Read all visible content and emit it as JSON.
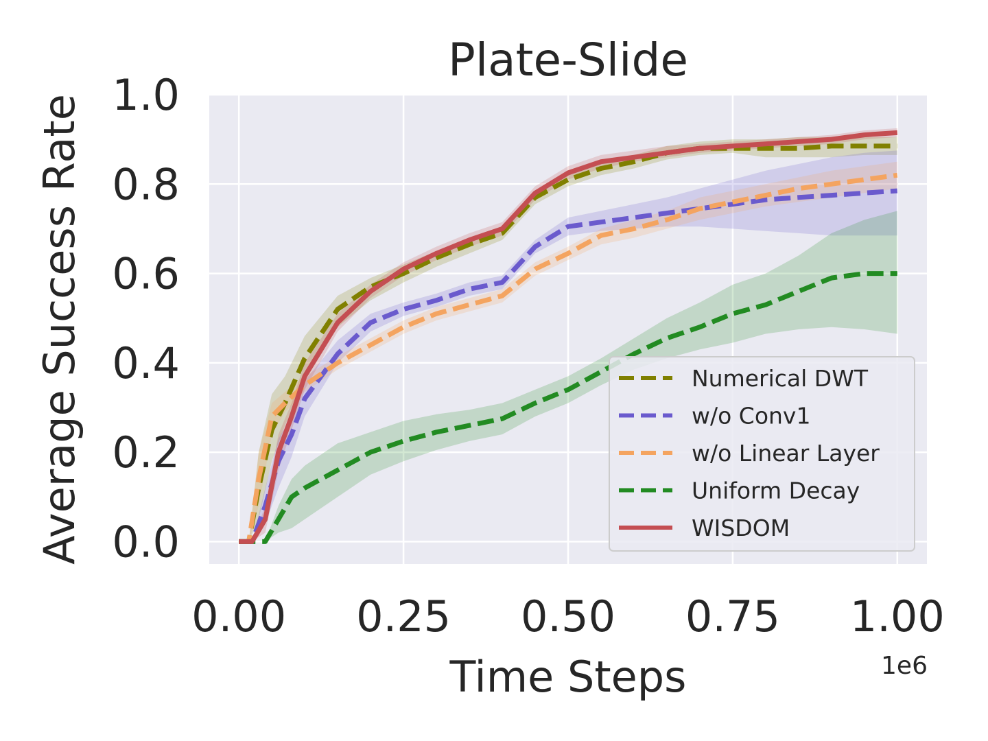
{
  "chart_data": {
    "type": "line",
    "title": "Plate-Slide",
    "xlabel": "Time Steps",
    "ylabel": "Average Success Rate",
    "x_offset_label": "1e6",
    "xlim": [
      -0.045,
      1.045
    ],
    "ylim": [
      -0.05,
      1.0
    ],
    "xticks": [
      0.0,
      0.25,
      0.5,
      0.75,
      1.0
    ],
    "xtick_labels": [
      "0.00",
      "0.25",
      "0.50",
      "0.75",
      "1.00"
    ],
    "yticks": [
      0.0,
      0.2,
      0.4,
      0.6,
      0.8,
      1.0
    ],
    "ytick_labels": [
      "0.0",
      "0.2",
      "0.4",
      "0.6",
      "0.8",
      "1.0"
    ],
    "grid": true,
    "legend_position": "lower-right",
    "series": [
      {
        "name": "Numerical DWT",
        "color": "#808000",
        "style": "dashed",
        "x": [
          0.0,
          0.015,
          0.03,
          0.05,
          0.07,
          0.1,
          0.15,
          0.2,
          0.25,
          0.3,
          0.35,
          0.4,
          0.45,
          0.5,
          0.55,
          0.6,
          0.65,
          0.7,
          0.75,
          0.8,
          0.85,
          0.9,
          0.95,
          1.0
        ],
        "y": [
          0.0,
          0.0,
          0.12,
          0.25,
          0.31,
          0.41,
          0.52,
          0.57,
          0.6,
          0.635,
          0.665,
          0.69,
          0.77,
          0.81,
          0.835,
          0.85,
          0.87,
          0.88,
          0.88,
          0.88,
          0.88,
          0.885,
          0.885,
          0.885
        ],
        "lower": [
          0.0,
          0.0,
          0.05,
          0.18,
          0.26,
          0.36,
          0.48,
          0.54,
          0.58,
          0.615,
          0.645,
          0.675,
          0.755,
          0.795,
          0.82,
          0.835,
          0.855,
          0.865,
          0.87,
          0.86,
          0.86,
          0.86,
          0.865,
          0.865
        ],
        "upper": [
          0.0,
          0.0,
          0.2,
          0.33,
          0.37,
          0.46,
          0.55,
          0.59,
          0.62,
          0.65,
          0.68,
          0.705,
          0.785,
          0.825,
          0.85,
          0.865,
          0.885,
          0.895,
          0.9,
          0.9,
          0.905,
          0.905,
          0.905,
          0.905
        ]
      },
      {
        "name": "w/o Conv1",
        "color": "#6a5acd",
        "style": "dashed",
        "x": [
          0.0,
          0.02,
          0.04,
          0.06,
          0.08,
          0.1,
          0.15,
          0.2,
          0.25,
          0.3,
          0.35,
          0.4,
          0.45,
          0.5,
          0.55,
          0.6,
          0.65,
          0.7,
          0.75,
          0.8,
          0.85,
          0.9,
          0.95,
          1.0
        ],
        "y": [
          0.0,
          0.0,
          0.08,
          0.18,
          0.24,
          0.32,
          0.42,
          0.49,
          0.52,
          0.54,
          0.565,
          0.58,
          0.66,
          0.705,
          0.715,
          0.725,
          0.735,
          0.745,
          0.755,
          0.765,
          0.77,
          0.775,
          0.78,
          0.785
        ],
        "lower": [
          0.0,
          0.0,
          0.04,
          0.12,
          0.19,
          0.28,
          0.4,
          0.47,
          0.505,
          0.525,
          0.55,
          0.565,
          0.645,
          0.685,
          0.695,
          0.7,
          0.705,
          0.705,
          0.7,
          0.695,
          0.69,
          0.685,
          0.685,
          0.685
        ],
        "upper": [
          0.0,
          0.0,
          0.12,
          0.23,
          0.28,
          0.36,
          0.45,
          0.51,
          0.535,
          0.555,
          0.58,
          0.595,
          0.675,
          0.725,
          0.74,
          0.755,
          0.77,
          0.79,
          0.81,
          0.83,
          0.845,
          0.86,
          0.87,
          0.875
        ]
      },
      {
        "name": "w/o Linear Layer",
        "color": "#f4a460",
        "style": "dashed",
        "x": [
          0.0,
          0.015,
          0.03,
          0.05,
          0.07,
          0.1,
          0.15,
          0.2,
          0.25,
          0.3,
          0.35,
          0.4,
          0.45,
          0.5,
          0.55,
          0.6,
          0.65,
          0.7,
          0.75,
          0.8,
          0.85,
          0.9,
          0.95,
          1.0
        ],
        "y": [
          0.0,
          0.0,
          0.14,
          0.28,
          0.31,
          0.35,
          0.4,
          0.44,
          0.48,
          0.51,
          0.53,
          0.55,
          0.61,
          0.645,
          0.685,
          0.7,
          0.72,
          0.745,
          0.76,
          0.775,
          0.79,
          0.8,
          0.81,
          0.82
        ],
        "lower": [
          0.0,
          0.0,
          0.08,
          0.24,
          0.29,
          0.335,
          0.385,
          0.425,
          0.465,
          0.495,
          0.515,
          0.535,
          0.595,
          0.63,
          0.665,
          0.68,
          0.7,
          0.72,
          0.735,
          0.75,
          0.76,
          0.77,
          0.78,
          0.79
        ],
        "upper": [
          0.0,
          0.0,
          0.2,
          0.31,
          0.335,
          0.37,
          0.415,
          0.455,
          0.495,
          0.525,
          0.545,
          0.565,
          0.625,
          0.66,
          0.7,
          0.72,
          0.74,
          0.77,
          0.785,
          0.8,
          0.815,
          0.83,
          0.84,
          0.85
        ]
      },
      {
        "name": "Uniform Decay",
        "color": "#228b22",
        "style": "dashed",
        "x": [
          0.0,
          0.04,
          0.06,
          0.08,
          0.1,
          0.15,
          0.2,
          0.25,
          0.3,
          0.35,
          0.4,
          0.45,
          0.5,
          0.55,
          0.6,
          0.65,
          0.7,
          0.75,
          0.8,
          0.85,
          0.9,
          0.95,
          1.0
        ],
        "y": [
          0.0,
          0.0,
          0.05,
          0.1,
          0.12,
          0.16,
          0.2,
          0.225,
          0.245,
          0.26,
          0.275,
          0.31,
          0.34,
          0.38,
          0.42,
          0.455,
          0.48,
          0.51,
          0.53,
          0.56,
          0.59,
          0.6,
          0.6
        ],
        "lower": [
          0.0,
          0.0,
          0.02,
          0.03,
          0.05,
          0.1,
          0.15,
          0.18,
          0.205,
          0.225,
          0.24,
          0.28,
          0.31,
          0.35,
          0.385,
          0.41,
          0.43,
          0.445,
          0.465,
          0.475,
          0.48,
          0.475,
          0.465
        ],
        "upper": [
          0.0,
          0.0,
          0.08,
          0.14,
          0.17,
          0.22,
          0.245,
          0.27,
          0.285,
          0.295,
          0.31,
          0.34,
          0.37,
          0.41,
          0.455,
          0.5,
          0.535,
          0.575,
          0.6,
          0.64,
          0.69,
          0.72,
          0.74
        ]
      },
      {
        "name": "WISDOM",
        "color": "#c44e52",
        "style": "solid",
        "x": [
          0.0,
          0.02,
          0.04,
          0.06,
          0.08,
          0.1,
          0.15,
          0.2,
          0.25,
          0.3,
          0.35,
          0.4,
          0.45,
          0.5,
          0.55,
          0.6,
          0.65,
          0.7,
          0.75,
          0.8,
          0.85,
          0.9,
          0.95,
          1.0
        ],
        "y": [
          0.0,
          0.0,
          0.05,
          0.2,
          0.28,
          0.37,
          0.49,
          0.56,
          0.61,
          0.645,
          0.675,
          0.7,
          0.78,
          0.825,
          0.85,
          0.86,
          0.87,
          0.88,
          0.885,
          0.89,
          0.895,
          0.9,
          0.91,
          0.915
        ],
        "lower": [
          0.0,
          0.0,
          0.02,
          0.16,
          0.25,
          0.34,
          0.47,
          0.545,
          0.595,
          0.63,
          0.66,
          0.685,
          0.765,
          0.81,
          0.835,
          0.85,
          0.86,
          0.87,
          0.875,
          0.88,
          0.885,
          0.89,
          0.9,
          0.905
        ],
        "upper": [
          0.0,
          0.0,
          0.08,
          0.24,
          0.31,
          0.4,
          0.51,
          0.575,
          0.625,
          0.66,
          0.69,
          0.715,
          0.795,
          0.84,
          0.865,
          0.875,
          0.885,
          0.89,
          0.895,
          0.9,
          0.905,
          0.91,
          0.92,
          0.925
        ]
      }
    ]
  }
}
